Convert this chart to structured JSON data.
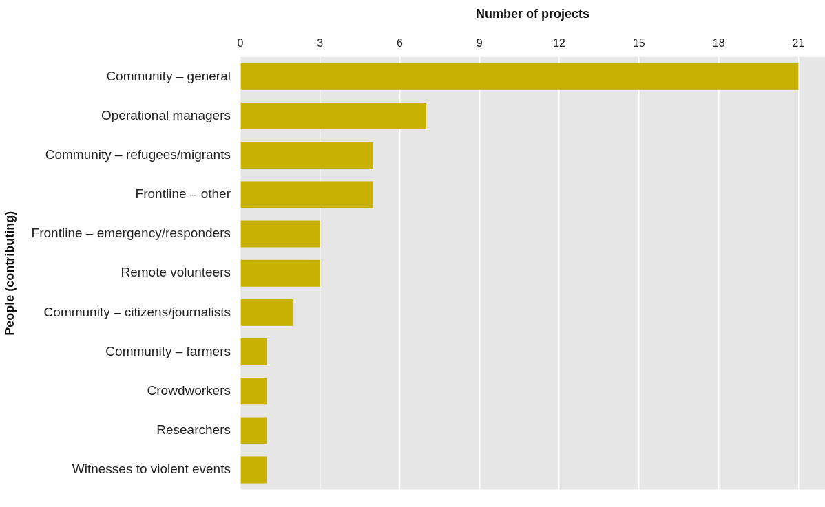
{
  "chart_data": {
    "type": "bar",
    "orientation": "horizontal",
    "xlabel": "Number of projects",
    "ylabel": "People (contributing)",
    "categories": [
      "Community – general",
      "Operational managers",
      "Community – refugees/migrants",
      "Frontline – other",
      "Frontline – emergency/responders",
      "Remote volunteers",
      "Community – citizens/journalists",
      "Community – farmers",
      "Crowdworkers",
      "Researchers",
      "Witnesses to violent events"
    ],
    "values": [
      21,
      7,
      5,
      5,
      3,
      3,
      2,
      1,
      1,
      1,
      1
    ],
    "color": "#c8b100",
    "xlim": [
      0,
      22
    ],
    "xticks": [
      0,
      3,
      6,
      9,
      12,
      15,
      18,
      21
    ],
    "grid": "x"
  }
}
